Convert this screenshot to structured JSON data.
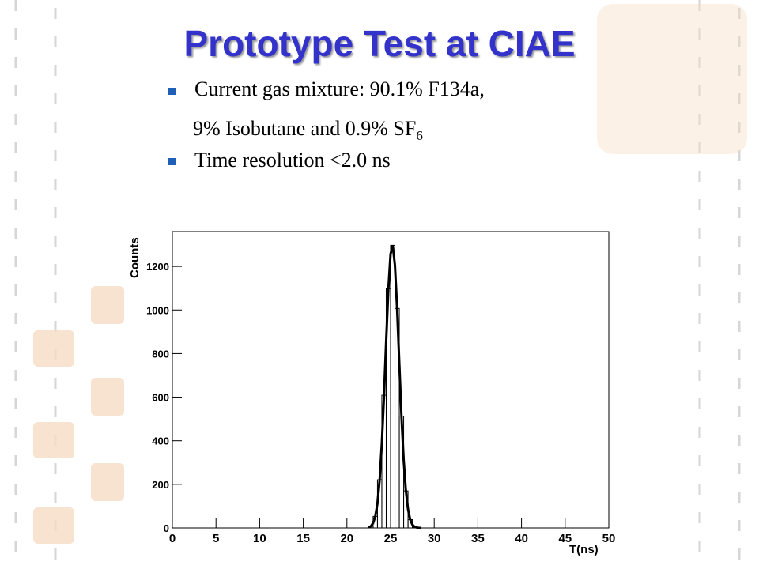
{
  "slide": {
    "title": "Prototype Test at CIAE",
    "bullet_1": "Current gas mixture: 90.1% F134a,",
    "bullet_1_cont": "9% Isobutane and 0.9% SF",
    "bullet_1_cont_sub": "6",
    "bullet_2": "Time resolution <2.0 ns"
  },
  "chart_data": {
    "type": "histogram",
    "xlabel": "T(ns)",
    "ylabel": "Counts",
    "bins": [
      22.5,
      23,
      23.5,
      24,
      24.5,
      25,
      25.5,
      26,
      26.5,
      27,
      27.5,
      28
    ],
    "values": [
      8,
      53,
      221,
      609,
      1098,
      1297,
      1007,
      513,
      170,
      38,
      6
    ],
    "color": "#000000",
    "fit": {
      "x": [
        22.5,
        22.75,
        23,
        23.25,
        23.5,
        23.75,
        24,
        24.25,
        24.5,
        24.75,
        25,
        25.25,
        25.5,
        25.75,
        26,
        26.25,
        26.5,
        26.75,
        27,
        27.25,
        27.5,
        27.75,
        28,
        28.25,
        28.5
      ],
      "values": [
        3,
        8,
        22,
        53,
        113,
        221,
        387,
        607,
        860,
        1096,
        1257,
        1297,
        1205,
        1007,
        758,
        513,
        313,
        172,
        85,
        38,
        15,
        5,
        2,
        0,
        0
      ],
      "color": "#000000"
    },
    "xlim": [
      0,
      50
    ],
    "xticks": [
      0,
      5,
      10,
      15,
      20,
      25,
      30,
      35,
      40,
      45,
      50
    ],
    "ylim": [
      0,
      1360
    ],
    "yticks": [
      0,
      200,
      400,
      600,
      800,
      1000,
      1200
    ]
  }
}
